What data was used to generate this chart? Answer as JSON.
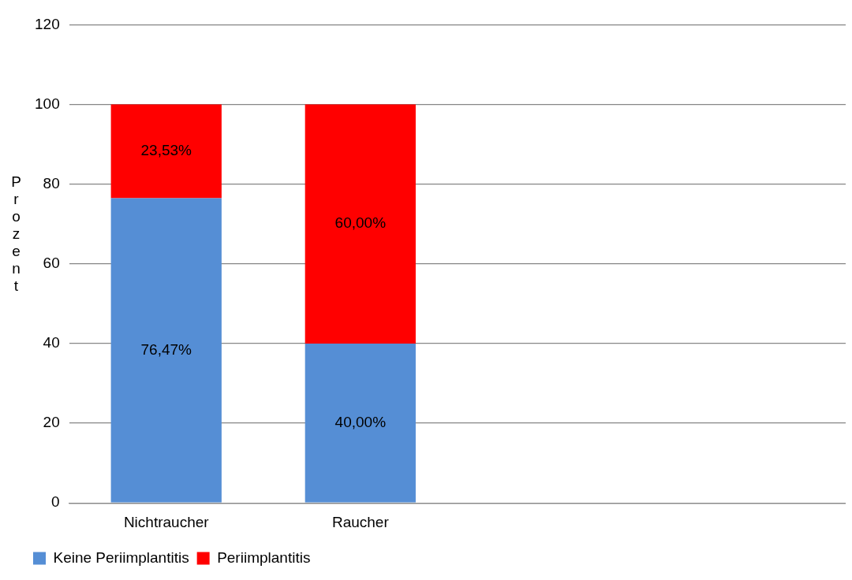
{
  "chart_data": {
    "type": "bar",
    "stacked": true,
    "ylabel": "Prozent",
    "categories": [
      "Nichtraucher",
      "Raucher",
      null,
      null
    ],
    "series": [
      {
        "name": "Keine Periimplantitis",
        "color": "#558ed5",
        "values": [
          76.47,
          40,
          null,
          null
        ],
        "value_labels": [
          "76,47%",
          "40,00%",
          null,
          null
        ]
      },
      {
        "name": "Periimplantitis",
        "color": "#ff0000",
        "values": [
          23.53,
          60,
          null,
          null
        ],
        "value_labels": [
          "23,53%",
          "60,00%",
          null,
          null
        ]
      }
    ],
    "ylim": [
      0,
      120
    ],
    "yticks": [
      0,
      20,
      40,
      60,
      80,
      100,
      120
    ],
    "grid": "y",
    "legend": "bottom left"
  }
}
